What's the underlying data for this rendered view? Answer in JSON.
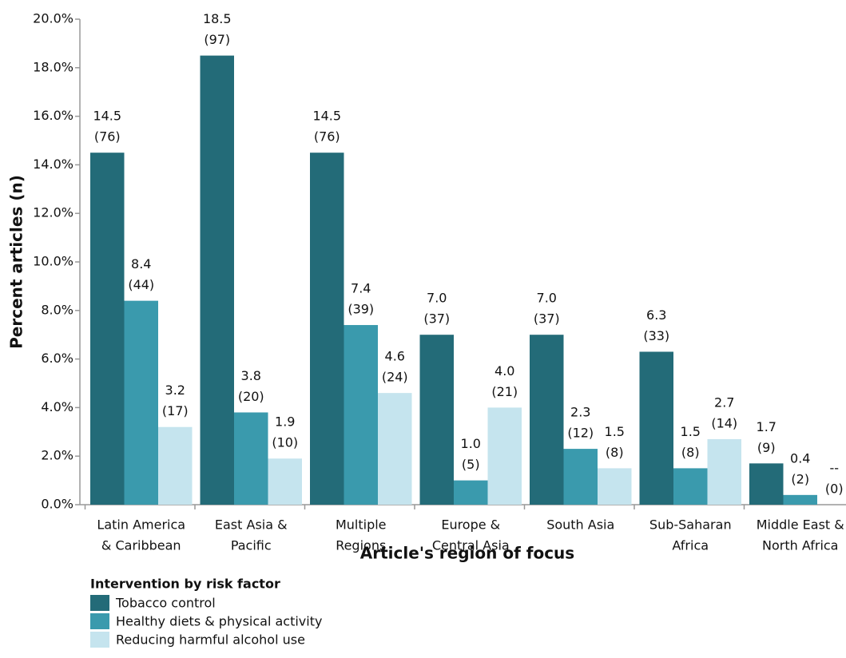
{
  "chart_data": {
    "type": "bar",
    "x_label": "Article's region of focus",
    "y_label": "Percent articles (n)",
    "legend_title": "Intervention by risk factor",
    "categories": [
      [
        "Latin America",
        "& Caribbean"
      ],
      [
        "East Asia &",
        "Pacific"
      ],
      [
        "Multiple",
        "Regions"
      ],
      [
        "Europe &",
        "Central Asia"
      ],
      [
        "South Asia"
      ],
      [
        "Sub-Saharan",
        "Africa"
      ],
      [
        "Middle East &",
        "North Africa"
      ]
    ],
    "series": [
      {
        "name": "Tobacco control",
        "color": "#236b78",
        "values": [
          14.5,
          18.5,
          14.5,
          7.0,
          7.0,
          6.3,
          1.7
        ],
        "value_labels": [
          [
            "14.5",
            "(76)"
          ],
          [
            "18.5",
            "(97)"
          ],
          [
            "14.5",
            "(76)"
          ],
          [
            "7.0",
            "(37)"
          ],
          [
            "7.0",
            "(37)"
          ],
          [
            "6.3",
            "(33)"
          ],
          [
            "1.7",
            "(9)"
          ]
        ]
      },
      {
        "name": "Healthy diets & physical activity",
        "color": "#3a9aad",
        "values": [
          8.4,
          3.8,
          7.4,
          1.0,
          2.3,
          1.5,
          0.4
        ],
        "value_labels": [
          [
            "8.4",
            "(44)"
          ],
          [
            "3.8",
            "(20)"
          ],
          [
            "7.4",
            "(39)"
          ],
          [
            "1.0",
            "(5)"
          ],
          [
            "2.3",
            "(12)"
          ],
          [
            "1.5",
            "(8)"
          ],
          [
            "0.4",
            "(2)"
          ]
        ]
      },
      {
        "name": "Reducing harmful alcohol use",
        "color": "#c5e4ee",
        "values": [
          3.2,
          1.9,
          4.6,
          4.0,
          1.5,
          2.7,
          0
        ],
        "value_labels": [
          [
            "3.2",
            "(17)"
          ],
          [
            "1.9",
            "(10)"
          ],
          [
            "4.6",
            "(24)"
          ],
          [
            "4.0",
            "(21)"
          ],
          [
            "1.5",
            "(8)"
          ],
          [
            "2.7",
            "(14)"
          ],
          [
            "--",
            "(0)"
          ]
        ]
      }
    ],
    "ylim": [
      0,
      20
    ],
    "yticks": [
      {
        "value": 0,
        "label": "0.0%"
      },
      {
        "value": 2,
        "label": "2.0%"
      },
      {
        "value": 4,
        "label": "4.0%"
      },
      {
        "value": 6,
        "label": "6.0%"
      },
      {
        "value": 8,
        "label": "8.0%"
      },
      {
        "value": 10,
        "label": "10.0%"
      },
      {
        "value": 12,
        "label": "12.0%"
      },
      {
        "value": 14,
        "label": "14.0%"
      },
      {
        "value": 16,
        "label": "16.0%"
      },
      {
        "value": 18,
        "label": "18.0%"
      },
      {
        "value": 20,
        "label": "20.0%"
      }
    ],
    "grid": false
  }
}
